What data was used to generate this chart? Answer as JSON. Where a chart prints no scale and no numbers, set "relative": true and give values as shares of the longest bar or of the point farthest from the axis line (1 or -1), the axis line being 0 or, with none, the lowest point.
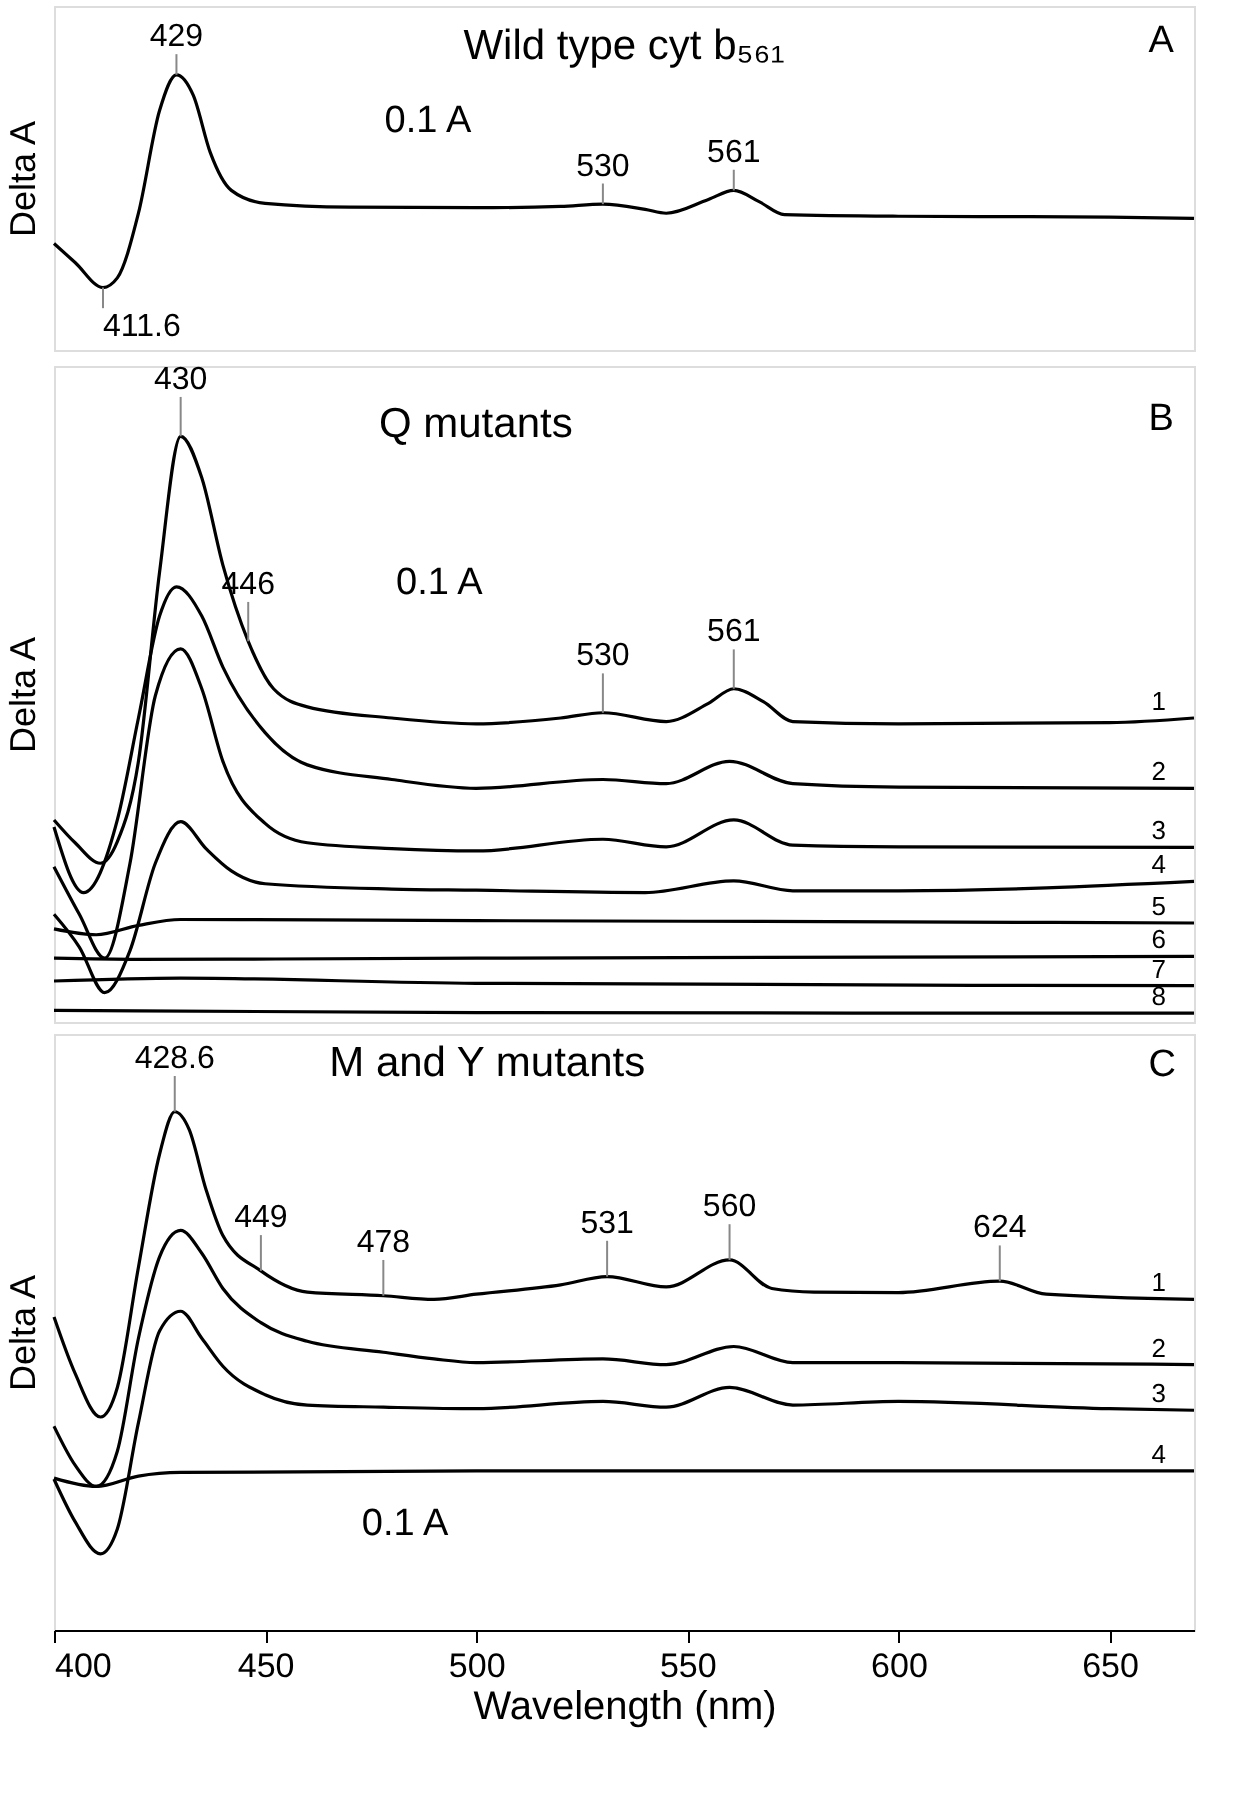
{
  "chart_data": [
    {
      "type": "line",
      "line_style": "solid",
      "title": "Wild type cyt b₅₆₁",
      "ylabel": "Delta A",
      "relative": true,
      "xlim": [
        400,
        670
      ],
      "xticks": [
        400,
        450,
        500,
        550,
        600,
        650
      ],
      "tick_labels": false,
      "legend": false,
      "grid": false,
      "annotations": [
        {
          "text": "429",
          "x": 429,
          "y": 1.0
        },
        {
          "text": "411.6",
          "x": 411.6,
          "y": 0.227
        },
        {
          "text": "530",
          "x": 530,
          "y": 0.53
        },
        {
          "text": "561",
          "x": 561,
          "y": 0.58
        },
        "0.1 A",
        "A"
      ],
      "series": [
        {
          "color": "#000000",
          "x": [
            400,
            405,
            411.6,
            415,
            420,
            425,
            429,
            433,
            437,
            442,
            450,
            470,
            500,
            520,
            530,
            540,
            545,
            555,
            561,
            567,
            573,
            600,
            650,
            670
          ],
          "values": [
            0.387,
            0.318,
            0.227,
            0.262,
            0.497,
            0.87,
            1.0,
            0.925,
            0.718,
            0.58,
            0.533,
            0.519,
            0.517,
            0.522,
            0.53,
            0.511,
            0.497,
            0.547,
            0.58,
            0.539,
            0.492,
            0.486,
            0.483,
            0.478
          ]
        }
      ]
    },
    {
      "type": "line",
      "line_style": "solid",
      "title": "Q mutants",
      "ylabel": "Delta A",
      "relative": true,
      "xlim": [
        400,
        670
      ],
      "xticks": [
        400,
        450,
        500,
        550,
        600,
        650
      ],
      "tick_labels": false,
      "legend": false,
      "grid": false,
      "annotations": [
        {
          "text": "430",
          "x": 430,
          "y": 1.0
        },
        {
          "text": "446",
          "x": 446,
          "y": 0.65
        },
        {
          "text": "530",
          "x": 530,
          "y": 0.528
        },
        {
          "text": "561",
          "x": 561,
          "y": 0.569
        },
        "0.1 A",
        "B"
      ],
      "series": [
        {
          "name": "1",
          "color": "#000000",
          "x": [
            400,
            405,
            411,
            415,
            420,
            425,
            430,
            435,
            440,
            446,
            452,
            460,
            480,
            500,
            520,
            530,
            545,
            555,
            561,
            568,
            575,
            600,
            650,
            670
          ],
          "values": [
            0.345,
            0.306,
            0.271,
            0.308,
            0.445,
            0.768,
            1.0,
            0.929,
            0.78,
            0.65,
            0.569,
            0.538,
            0.519,
            0.509,
            0.519,
            0.528,
            0.513,
            0.544,
            0.569,
            0.547,
            0.513,
            0.509,
            0.511,
            0.519
          ]
        },
        {
          "name": "2",
          "color": "#000000",
          "x": [
            400,
            407,
            415,
            420,
            425,
            429,
            435,
            440,
            450,
            460,
            480,
            500,
            530,
            545,
            560,
            575,
            600,
            670
          ],
          "values": [
            0.333,
            0.221,
            0.345,
            0.519,
            0.693,
            0.743,
            0.693,
            0.606,
            0.494,
            0.439,
            0.414,
            0.399,
            0.414,
            0.407,
            0.445,
            0.407,
            0.401,
            0.399
          ]
        },
        {
          "name": "3",
          "color": "#000000",
          "x": [
            400,
            406,
            412,
            418,
            424,
            430,
            435,
            440,
            450,
            460,
            480,
            500,
            530,
            545,
            561,
            575,
            600,
            670
          ],
          "values": [
            0.265,
            0.184,
            0.109,
            0.271,
            0.557,
            0.637,
            0.569,
            0.445,
            0.339,
            0.306,
            0.296,
            0.292,
            0.312,
            0.299,
            0.345,
            0.302,
            0.299,
            0.298
          ]
        },
        {
          "name": "4",
          "color": "#000000",
          "x": [
            400,
            406,
            412,
            418,
            424,
            430,
            436,
            442,
            450,
            480,
            500,
            540,
            561,
            575,
            600,
            670
          ],
          "values": [
            0.184,
            0.128,
            0.05,
            0.122,
            0.271,
            0.342,
            0.296,
            0.258,
            0.236,
            0.227,
            0.225,
            0.221,
            0.241,
            0.224,
            0.224,
            0.24
          ]
        },
        {
          "name": "5",
          "color": "#000000",
          "x": [
            400,
            410,
            420,
            430,
            500,
            600,
            670
          ],
          "values": [
            0.159,
            0.149,
            0.165,
            0.175,
            0.173,
            0.171,
            0.169
          ]
        },
        {
          "name": "6",
          "color": "#000000",
          "x": [
            400,
            420,
            500,
            670
          ],
          "values": [
            0.109,
            0.107,
            0.109,
            0.112
          ]
        },
        {
          "name": "7",
          "color": "#000000",
          "x": [
            400,
            430,
            500,
            670
          ],
          "values": [
            0.07,
            0.075,
            0.066,
            0.062
          ]
        },
        {
          "name": "8",
          "color": "#000000",
          "x": [
            400,
            500,
            670
          ],
          "values": [
            0.02,
            0.016,
            0.015
          ]
        }
      ]
    },
    {
      "type": "line",
      "line_style": "solid",
      "title": "M and Y mutants",
      "xlabel": "Wavelength (nm)",
      "ylabel": "Delta A",
      "relative": true,
      "xlim": [
        400,
        670
      ],
      "xticks": [
        400,
        450,
        500,
        550,
        600,
        650
      ],
      "tick_labels": "x",
      "legend": false,
      "grid": false,
      "annotations": [
        {
          "text": "428.6",
          "x": 428.6,
          "y": 1.0
        },
        {
          "text": "449",
          "x": 449,
          "y": 0.693
        },
        {
          "text": "478",
          "x": 478,
          "y": 0.645
        },
        {
          "text": "531",
          "x": 531,
          "y": 0.682
        },
        {
          "text": "560",
          "x": 560,
          "y": 0.714
        },
        {
          "text": "624",
          "x": 624,
          "y": 0.673
        },
        "0.1 A",
        "C"
      ],
      "series": [
        {
          "name": "1",
          "color": "#000000",
          "x": [
            400,
            405,
            411,
            415,
            420,
            425,
            428.6,
            432,
            436,
            440,
            449,
            460,
            478,
            490,
            500,
            520,
            531,
            545,
            560,
            570,
            580,
            600,
            624,
            635,
            670
          ],
          "values": [
            0.604,
            0.495,
            0.411,
            0.468,
            0.7,
            0.918,
            1.0,
            0.966,
            0.85,
            0.761,
            0.693,
            0.652,
            0.645,
            0.638,
            0.648,
            0.666,
            0.682,
            0.662,
            0.714,
            0.659,
            0.652,
            0.651,
            0.673,
            0.648,
            0.638
          ]
        },
        {
          "name": "2",
          "color": "#000000",
          "x": [
            400,
            405,
            410,
            415,
            420,
            425,
            430,
            435,
            440,
            449,
            460,
            478,
            490,
            500,
            530,
            545,
            561,
            575,
            600,
            670
          ],
          "values": [
            0.393,
            0.318,
            0.277,
            0.345,
            0.563,
            0.72,
            0.771,
            0.727,
            0.659,
            0.593,
            0.557,
            0.536,
            0.523,
            0.516,
            0.523,
            0.512,
            0.547,
            0.516,
            0.516,
            0.512
          ]
        },
        {
          "name": "3",
          "color": "#000000",
          "x": [
            400,
            405,
            411,
            415,
            420,
            425,
            430,
            435,
            440,
            450,
            460,
            478,
            500,
            530,
            545,
            560,
            575,
            600,
            650,
            670
          ],
          "values": [
            0.291,
            0.209,
            0.147,
            0.195,
            0.4,
            0.577,
            0.615,
            0.563,
            0.509,
            0.454,
            0.434,
            0.43,
            0.427,
            0.441,
            0.43,
            0.468,
            0.434,
            0.441,
            0.427,
            0.424
          ]
        },
        {
          "name": "4",
          "color": "#000000",
          "x": [
            400,
            410,
            420,
            430,
            500,
            670
          ],
          "values": [
            0.293,
            0.277,
            0.297,
            0.304,
            0.307,
            0.307
          ]
        }
      ]
    }
  ]
}
